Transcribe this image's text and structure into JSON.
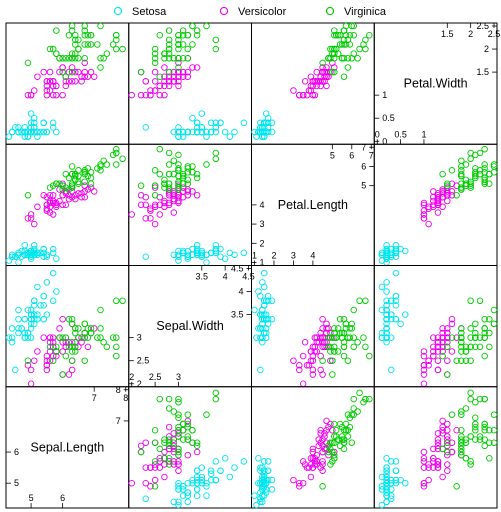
{
  "chart_data": {
    "type": "scatter",
    "variables": [
      "Sepal.Length",
      "Sepal.Width",
      "Petal.Length",
      "Petal.Width"
    ],
    "ranges": {
      "Sepal.Length": [
        4.3,
        8.0
      ],
      "Sepal.Width": [
        2.0,
        4.5
      ],
      "Petal.Length": [
        1.0,
        7.0
      ],
      "Petal.Width": [
        0.0,
        2.5
      ]
    },
    "ticks": {
      "Sepal.Length": [
        5,
        6,
        7,
        8
      ],
      "Sepal.Width": [
        2,
        2.5,
        3,
        3.5,
        4,
        4.5
      ],
      "Petal.Length": [
        1,
        2,
        3,
        4,
        5,
        6,
        7
      ],
      "Petal.Width": [
        0,
        0.5,
        1,
        1.5,
        2,
        2.5
      ]
    },
    "legend": {
      "position": "top",
      "entries": [
        {
          "name": "Setosa",
          "color": "#00e5ee"
        },
        {
          "name": "Versicolor",
          "color": "#ee00ee"
        },
        {
          "name": "Virginica",
          "color": "#00cc00"
        }
      ]
    },
    "marker": "open-circle",
    "layout": "scatterplot-matrix, diagonal reversed (Sepal.Length bottom-left to Petal.Width top-right)",
    "series": [
      {
        "name": "Setosa",
        "color": "#00e5ee",
        "points": [
          [
            5.1,
            3.5,
            1.4,
            0.2
          ],
          [
            4.9,
            3.0,
            1.4,
            0.2
          ],
          [
            4.7,
            3.2,
            1.3,
            0.2
          ],
          [
            4.6,
            3.1,
            1.5,
            0.2
          ],
          [
            5.0,
            3.6,
            1.4,
            0.2
          ],
          [
            5.4,
            3.9,
            1.7,
            0.4
          ],
          [
            4.6,
            3.4,
            1.4,
            0.3
          ],
          [
            5.0,
            3.4,
            1.5,
            0.2
          ],
          [
            4.4,
            2.9,
            1.4,
            0.2
          ],
          [
            4.9,
            3.1,
            1.5,
            0.1
          ],
          [
            5.4,
            3.7,
            1.5,
            0.2
          ],
          [
            4.8,
            3.4,
            1.6,
            0.2
          ],
          [
            4.8,
            3.0,
            1.4,
            0.1
          ],
          [
            4.3,
            3.0,
            1.1,
            0.1
          ],
          [
            5.8,
            4.0,
            1.2,
            0.2
          ],
          [
            5.7,
            4.4,
            1.5,
            0.4
          ],
          [
            5.4,
            3.9,
            1.3,
            0.4
          ],
          [
            5.1,
            3.5,
            1.4,
            0.3
          ],
          [
            5.7,
            3.8,
            1.7,
            0.3
          ],
          [
            5.1,
            3.8,
            1.5,
            0.3
          ],
          [
            5.4,
            3.4,
            1.7,
            0.2
          ],
          [
            5.1,
            3.7,
            1.5,
            0.4
          ],
          [
            4.6,
            3.6,
            1.0,
            0.2
          ],
          [
            5.1,
            3.3,
            1.7,
            0.5
          ],
          [
            4.8,
            3.4,
            1.9,
            0.2
          ],
          [
            5.0,
            3.0,
            1.6,
            0.2
          ],
          [
            5.0,
            3.4,
            1.6,
            0.4
          ],
          [
            5.2,
            3.5,
            1.5,
            0.2
          ],
          [
            5.2,
            3.4,
            1.4,
            0.2
          ],
          [
            4.7,
            3.2,
            1.6,
            0.2
          ],
          [
            4.8,
            3.1,
            1.6,
            0.2
          ],
          [
            5.4,
            3.4,
            1.5,
            0.4
          ],
          [
            5.2,
            4.1,
            1.5,
            0.1
          ],
          [
            5.5,
            4.2,
            1.4,
            0.2
          ],
          [
            4.9,
            3.1,
            1.5,
            0.2
          ],
          [
            5.0,
            3.2,
            1.2,
            0.2
          ],
          [
            5.5,
            3.5,
            1.3,
            0.2
          ],
          [
            4.9,
            3.6,
            1.4,
            0.1
          ],
          [
            4.4,
            3.0,
            1.3,
            0.2
          ],
          [
            5.1,
            3.4,
            1.5,
            0.2
          ],
          [
            5.0,
            3.5,
            1.3,
            0.3
          ],
          [
            4.5,
            2.3,
            1.3,
            0.3
          ],
          [
            4.4,
            3.2,
            1.3,
            0.2
          ],
          [
            5.0,
            3.5,
            1.6,
            0.6
          ],
          [
            5.1,
            3.8,
            1.9,
            0.4
          ],
          [
            4.8,
            3.0,
            1.4,
            0.3
          ],
          [
            5.1,
            3.8,
            1.6,
            0.2
          ],
          [
            4.6,
            3.2,
            1.4,
            0.2
          ],
          [
            5.3,
            3.7,
            1.5,
            0.2
          ],
          [
            5.0,
            3.3,
            1.4,
            0.2
          ]
        ]
      },
      {
        "name": "Versicolor",
        "color": "#ee00ee",
        "points": [
          [
            7.0,
            3.2,
            4.7,
            1.4
          ],
          [
            6.4,
            3.2,
            4.5,
            1.5
          ],
          [
            6.9,
            3.1,
            4.9,
            1.5
          ],
          [
            5.5,
            2.3,
            4.0,
            1.3
          ],
          [
            6.5,
            2.8,
            4.6,
            1.5
          ],
          [
            5.7,
            2.8,
            4.5,
            1.3
          ],
          [
            6.3,
            3.3,
            4.7,
            1.6
          ],
          [
            4.9,
            2.4,
            3.3,
            1.0
          ],
          [
            6.6,
            2.9,
            4.6,
            1.3
          ],
          [
            5.2,
            2.7,
            3.9,
            1.4
          ],
          [
            5.0,
            2.0,
            3.5,
            1.0
          ],
          [
            5.9,
            3.0,
            4.2,
            1.5
          ],
          [
            6.0,
            2.2,
            4.0,
            1.0
          ],
          [
            6.1,
            2.9,
            4.7,
            1.4
          ],
          [
            5.6,
            2.9,
            3.6,
            1.3
          ],
          [
            6.7,
            3.1,
            4.4,
            1.4
          ],
          [
            5.6,
            3.0,
            4.5,
            1.5
          ],
          [
            5.8,
            2.7,
            4.1,
            1.0
          ],
          [
            6.2,
            2.2,
            4.5,
            1.5
          ],
          [
            5.6,
            2.5,
            3.9,
            1.1
          ],
          [
            5.9,
            3.2,
            4.8,
            1.8
          ],
          [
            6.1,
            2.8,
            4.0,
            1.3
          ],
          [
            6.3,
            2.5,
            4.9,
            1.5
          ],
          [
            6.1,
            2.8,
            4.7,
            1.2
          ],
          [
            6.4,
            2.9,
            4.3,
            1.3
          ],
          [
            6.6,
            3.0,
            4.4,
            1.4
          ],
          [
            6.8,
            2.8,
            4.8,
            1.4
          ],
          [
            6.7,
            3.0,
            5.0,
            1.7
          ],
          [
            6.0,
            2.9,
            4.5,
            1.5
          ],
          [
            5.7,
            2.6,
            3.5,
            1.0
          ],
          [
            5.5,
            2.4,
            3.8,
            1.1
          ],
          [
            5.5,
            2.4,
            3.7,
            1.0
          ],
          [
            5.8,
            2.7,
            3.9,
            1.2
          ],
          [
            6.0,
            2.7,
            5.1,
            1.6
          ],
          [
            5.4,
            3.0,
            4.5,
            1.5
          ],
          [
            6.0,
            3.4,
            4.5,
            1.6
          ],
          [
            6.7,
            3.1,
            4.7,
            1.5
          ],
          [
            6.3,
            2.3,
            4.4,
            1.3
          ],
          [
            5.6,
            3.0,
            4.1,
            1.3
          ],
          [
            5.5,
            2.5,
            4.0,
            1.3
          ],
          [
            5.5,
            2.6,
            4.4,
            1.2
          ],
          [
            6.1,
            3.0,
            4.6,
            1.4
          ],
          [
            5.8,
            2.6,
            4.0,
            1.2
          ],
          [
            5.0,
            2.3,
            3.3,
            1.0
          ],
          [
            5.6,
            2.7,
            4.2,
            1.3
          ],
          [
            5.7,
            3.0,
            4.2,
            1.2
          ],
          [
            5.7,
            2.9,
            4.2,
            1.3
          ],
          [
            6.2,
            2.9,
            4.3,
            1.3
          ],
          [
            5.1,
            2.5,
            3.0,
            1.1
          ],
          [
            5.7,
            2.8,
            4.1,
            1.3
          ]
        ]
      },
      {
        "name": "Virginica",
        "color": "#00cc00",
        "points": [
          [
            6.3,
            3.3,
            6.0,
            2.5
          ],
          [
            5.8,
            2.7,
            5.1,
            1.9
          ],
          [
            7.1,
            3.0,
            5.9,
            2.1
          ],
          [
            6.3,
            2.9,
            5.6,
            1.8
          ],
          [
            6.5,
            3.0,
            5.8,
            2.2
          ],
          [
            7.6,
            3.0,
            6.6,
            2.1
          ],
          [
            4.9,
            2.5,
            4.5,
            1.7
          ],
          [
            7.3,
            2.9,
            6.3,
            1.8
          ],
          [
            6.7,
            2.5,
            5.8,
            1.8
          ],
          [
            7.2,
            3.6,
            6.1,
            2.5
          ],
          [
            6.5,
            3.2,
            5.1,
            2.0
          ],
          [
            6.4,
            2.7,
            5.3,
            1.9
          ],
          [
            6.8,
            3.0,
            5.5,
            2.1
          ],
          [
            5.7,
            2.5,
            5.0,
            2.0
          ],
          [
            5.8,
            2.8,
            5.1,
            2.4
          ],
          [
            6.4,
            3.2,
            5.3,
            2.3
          ],
          [
            6.5,
            3.0,
            5.5,
            1.8
          ],
          [
            7.7,
            3.8,
            6.7,
            2.2
          ],
          [
            7.7,
            2.6,
            6.9,
            2.3
          ],
          [
            6.0,
            2.2,
            5.0,
            1.5
          ],
          [
            6.9,
            3.2,
            5.7,
            2.3
          ],
          [
            5.6,
            2.8,
            4.9,
            2.0
          ],
          [
            7.7,
            2.8,
            6.7,
            2.0
          ],
          [
            6.3,
            2.7,
            4.9,
            1.8
          ],
          [
            6.7,
            3.3,
            5.7,
            2.1
          ],
          [
            7.2,
            3.2,
            6.0,
            1.8
          ],
          [
            6.2,
            2.8,
            4.8,
            1.8
          ],
          [
            6.1,
            3.0,
            4.9,
            1.8
          ],
          [
            6.4,
            2.8,
            5.6,
            2.1
          ],
          [
            7.2,
            3.0,
            5.8,
            1.6
          ],
          [
            7.4,
            2.8,
            6.1,
            1.9
          ],
          [
            7.9,
            3.8,
            6.4,
            2.0
          ],
          [
            6.4,
            2.8,
            5.6,
            2.2
          ],
          [
            6.3,
            2.8,
            5.1,
            1.5
          ],
          [
            6.1,
            2.6,
            5.6,
            1.4
          ],
          [
            7.7,
            3.0,
            6.1,
            2.3
          ],
          [
            6.3,
            3.4,
            5.6,
            2.4
          ],
          [
            6.4,
            3.1,
            5.5,
            1.8
          ],
          [
            6.0,
            3.0,
            4.8,
            1.8
          ],
          [
            6.9,
            3.1,
            5.4,
            2.1
          ],
          [
            6.7,
            3.1,
            5.6,
            2.4
          ],
          [
            6.9,
            3.1,
            5.1,
            2.3
          ],
          [
            5.8,
            2.7,
            5.1,
            1.9
          ],
          [
            6.8,
            3.2,
            5.9,
            2.3
          ],
          [
            6.7,
            3.3,
            5.7,
            2.5
          ],
          [
            6.7,
            3.0,
            5.2,
            2.3
          ],
          [
            6.3,
            2.5,
            5.0,
            1.9
          ],
          [
            6.5,
            3.0,
            5.2,
            2.0
          ],
          [
            6.2,
            3.4,
            5.4,
            2.3
          ],
          [
            5.9,
            3.0,
            5.1,
            1.8
          ]
        ]
      }
    ]
  }
}
